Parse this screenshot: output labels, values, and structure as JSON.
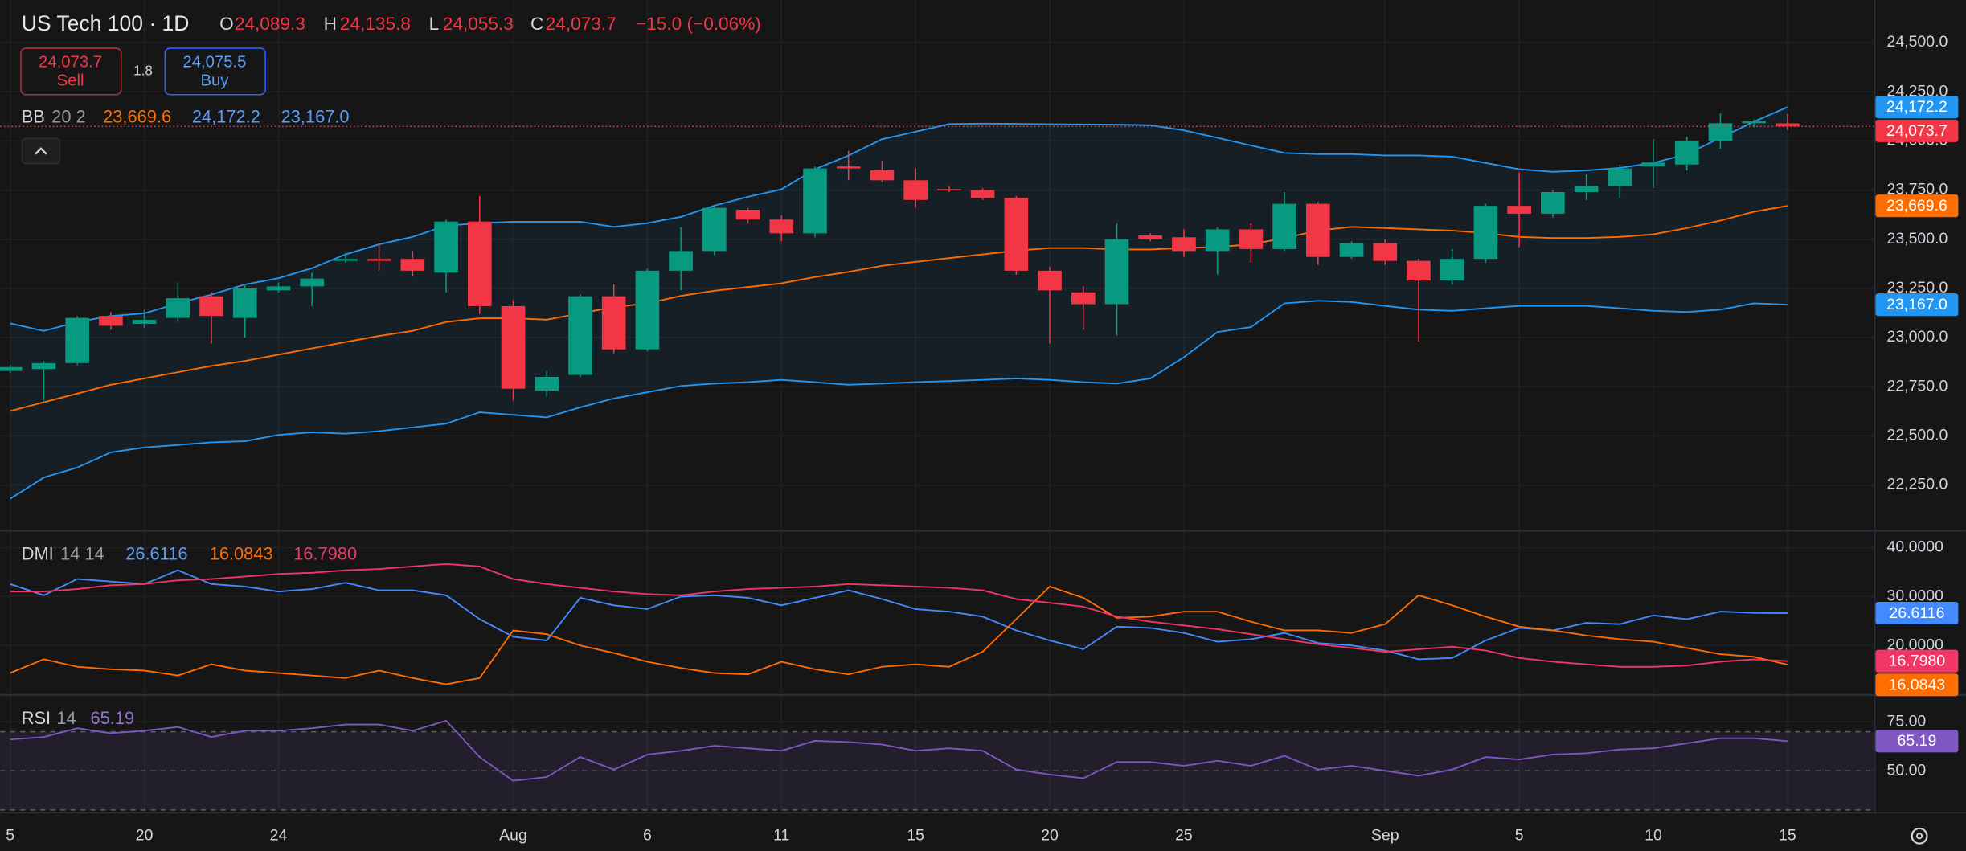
{
  "header": {
    "symbol": "US Tech 100 · 1D",
    "open_label": "O",
    "open": "24,089.3",
    "high_label": "H",
    "high": "24,135.8",
    "low_label": "L",
    "low": "24,055.3",
    "close_label": "C",
    "close": "24,073.7",
    "change": "−15.0 (−0.06%)"
  },
  "trade": {
    "sell_price": "24,073.7",
    "sell": "Sell",
    "spread": "1.8",
    "buy_price": "24,075.5",
    "buy": "Buy"
  },
  "chart_data": [
    {
      "type": "candlestick",
      "name": "BB",
      "params": "20 2",
      "categories": [
        "5",
        null,
        null,
        null,
        "20",
        null,
        null,
        null,
        "24",
        null,
        null,
        null,
        null,
        null,
        null,
        "Aug",
        null,
        null,
        null,
        "6",
        null,
        null,
        null,
        "11",
        null,
        null,
        null,
        "15",
        null,
        null,
        null,
        "20",
        null,
        null,
        null,
        "25",
        null,
        null,
        null,
        null,
        null,
        "Sep",
        null,
        null,
        null,
        "5",
        null,
        null,
        null,
        "10",
        null,
        null,
        null,
        "15"
      ],
      "open": [
        22830,
        22840,
        22870,
        23110,
        23070,
        23100,
        23210,
        23100,
        23240,
        23260,
        23390,
        23400,
        23400,
        23330,
        23590,
        23160,
        22730,
        22810,
        23210,
        22940,
        23340,
        23440,
        23650,
        23600,
        23530,
        23870,
        23850,
        23800,
        23755,
        23750,
        23710,
        23340,
        23230,
        23170,
        23520,
        23510,
        23440,
        23550,
        23450,
        23680,
        23410,
        23480,
        23390,
        23290,
        23400,
        23670,
        23630,
        23740,
        23770,
        23870,
        23880,
        24000,
        24090,
        24089.3
      ],
      "high": [
        22860,
        22880,
        23110,
        23130,
        23140,
        23280,
        23230,
        23270,
        23280,
        23330,
        23430,
        23480,
        23440,
        23600,
        23720,
        23190,
        22830,
        23220,
        23270,
        23350,
        23560,
        23670,
        23660,
        23620,
        23870,
        23950,
        23900,
        23860,
        23770,
        23760,
        23720,
        23360,
        23260,
        23580,
        23530,
        23550,
        23560,
        23580,
        23740,
        23690,
        23490,
        23500,
        23400,
        23450,
        23680,
        23840,
        23750,
        23830,
        23880,
        24010,
        24020,
        24140,
        24110,
        24135.8
      ],
      "low": [
        22820,
        22680,
        22860,
        23040,
        23050,
        23080,
        22970,
        23000,
        23230,
        23160,
        23380,
        23340,
        23310,
        23230,
        23120,
        22680,
        22700,
        22800,
        22920,
        22930,
        23240,
        23420,
        23580,
        23490,
        23510,
        23800,
        23790,
        23660,
        23740,
        23700,
        23320,
        22970,
        23040,
        23010,
        23490,
        23410,
        23320,
        23380,
        23440,
        23370,
        23400,
        23370,
        22980,
        23270,
        23380,
        23460,
        23610,
        23700,
        23710,
        23760,
        23850,
        23960,
        24070,
        24055.3
      ],
      "close": [
        22850,
        22870,
        23100,
        23060,
        23090,
        23200,
        23110,
        23250,
        23260,
        23300,
        23400,
        23390,
        23340,
        23590,
        23160,
        22740,
        22800,
        23210,
        22940,
        23340,
        23440,
        23660,
        23600,
        23530,
        23860,
        23860,
        23800,
        23700,
        23750,
        23710,
        23340,
        23240,
        23170,
        23500,
        23500,
        23440,
        23550,
        23450,
        23680,
        23410,
        23480,
        23390,
        23290,
        23400,
        23670,
        23630,
        23740,
        23770,
        23860,
        23890,
        24000,
        24090,
        24100,
        24073.7
      ],
      "up_color": "#089981",
      "down_color": "#f23645",
      "ylim": [
        22020.5,
        24716.7
      ],
      "yticks": [
        {
          "value": 24500,
          "label": "24,500.0"
        },
        {
          "value": 24250,
          "label": "24,250.0"
        },
        {
          "value": 24000,
          "label": "24,000.0"
        },
        {
          "value": 23750,
          "label": "23,750.0"
        },
        {
          "value": 23500,
          "label": "23,500.0"
        },
        {
          "value": 23250,
          "label": "23,250.0"
        },
        {
          "value": 23000,
          "label": "23,000.0"
        },
        {
          "value": 22750,
          "label": "22,750.0"
        },
        {
          "value": 22500,
          "label": "22,500.0"
        },
        {
          "value": 22250,
          "label": "22,250.0"
        }
      ],
      "grid": true,
      "band_fill": "rgba(33,150,243,0.07)",
      "series": [
        {
          "color": "#ff6d00",
          "last_label": "23,669.6",
          "values": [
            22626,
            22671,
            22715,
            22760,
            22792,
            22824,
            22856,
            22881,
            22913,
            22945,
            22977,
            23008,
            23034,
            23079,
            23098,
            23098,
            23091,
            23123,
            23155,
            23174,
            23212,
            23238,
            23257,
            23276,
            23308,
            23334,
            23365,
            23385,
            23404,
            23423,
            23442,
            23455,
            23455,
            23448,
            23448,
            23455,
            23461,
            23474,
            23506,
            23544,
            23563,
            23557,
            23550,
            23544,
            23531,
            23512,
            23506,
            23506,
            23512,
            23525,
            23557,
            23595,
            23640,
            23669.6
          ]
        },
        {
          "color": "#2196f3",
          "last_label": "24,172.2",
          "values": [
            23072,
            23034,
            23079,
            23110,
            23123,
            23174,
            23219,
            23270,
            23302,
            23353,
            23423,
            23474,
            23512,
            23569,
            23582,
            23589,
            23589,
            23589,
            23563,
            23582,
            23614,
            23671,
            23716,
            23754,
            23856,
            23926,
            24009,
            24047,
            24086,
            24088,
            24087,
            24085,
            24084,
            24083,
            24080,
            24054,
            24016,
            23977,
            23939,
            23933,
            23933,
            23926,
            23926,
            23920,
            23888,
            23856,
            23843,
            23850,
            23863,
            23888,
            23933,
            24016,
            24098,
            24172.2
          ]
        },
        {
          "color": "#2196f3",
          "last_label": "23,167.0",
          "values": [
            22180,
            22288,
            22339,
            22416,
            22441,
            22454,
            22467,
            22473,
            22505,
            22518,
            22511,
            22524,
            22543,
            22562,
            22620,
            22607,
            22594,
            22645,
            22690,
            22722,
            22754,
            22766,
            22773,
            22785,
            22773,
            22760,
            22766,
            22773,
            22779,
            22785,
            22792,
            22785,
            22773,
            22766,
            22792,
            22900,
            23028,
            23053,
            23174,
            23187,
            23181,
            23161,
            23142,
            23136,
            23149,
            23161,
            23161,
            23161,
            23149,
            23136,
            23130,
            23142,
            23174,
            23167.0
          ]
        }
      ]
    },
    {
      "type": "line",
      "name": "DMI",
      "params": "14 14",
      "ylim": [
        10.26,
        43.33
      ],
      "yticks": [
        {
          "value": 40,
          "label": "40.0000"
        },
        {
          "value": 30,
          "label": "30.0000"
        },
        {
          "value": 20,
          "label": "20.0000"
        }
      ],
      "grid": true,
      "series": [
        {
          "color": "#448aff",
          "values": [
            32.56,
            30.26,
            33.59,
            33.08,
            32.56,
            35.38,
            32.56,
            32.05,
            31.03,
            31.54,
            32.82,
            31.28,
            31.28,
            30.26,
            25.38,
            21.79,
            21.03,
            29.74,
            28.21,
            27.44,
            30.0,
            30.26,
            29.74,
            28.21,
            29.74,
            31.28,
            29.49,
            27.44,
            26.92,
            25.9,
            23.08,
            21.03,
            19.23,
            23.85,
            23.59,
            22.56,
            20.77,
            21.28,
            22.56,
            20.51,
            20.0,
            18.97,
            17.18,
            17.44,
            21.03,
            23.59,
            23.08,
            24.62,
            24.36,
            26.15,
            25.38,
            26.92,
            26.67,
            26.6116
          ]
        },
        {
          "color": "#ff6d00",
          "values": [
            14.36,
            17.18,
            15.64,
            15.13,
            14.87,
            13.85,
            16.15,
            14.87,
            14.36,
            13.85,
            13.33,
            14.87,
            13.33,
            12.05,
            13.33,
            23.08,
            22.31,
            20.0,
            18.46,
            16.67,
            15.38,
            14.36,
            14.1,
            16.67,
            15.13,
            14.1,
            15.64,
            16.15,
            15.64,
            18.72,
            25.38,
            32.05,
            29.74,
            25.64,
            25.9,
            26.92,
            26.92,
            24.87,
            23.08,
            23.08,
            22.56,
            24.36,
            30.26,
            28.21,
            25.9,
            23.85,
            23.08,
            22.05,
            21.28,
            20.77,
            19.49,
            18.21,
            17.69,
            16.0843
          ]
        },
        {
          "color": "#f23665",
          "last_label": "16.7980",
          "values": [
            31.03,
            31.03,
            31.54,
            32.31,
            32.56,
            33.33,
            33.59,
            34.1,
            34.62,
            34.87,
            35.38,
            35.64,
            36.15,
            36.67,
            36.15,
            33.59,
            32.56,
            31.79,
            31.03,
            30.51,
            30.26,
            31.03,
            31.54,
            31.79,
            32.05,
            32.56,
            32.31,
            32.05,
            31.79,
            31.28,
            29.49,
            28.72,
            27.95,
            25.9,
            24.87,
            24.1,
            23.33,
            22.31,
            21.28,
            20.26,
            19.49,
            18.72,
            19.23,
            19.74,
            18.97,
            17.44,
            16.67,
            16.15,
            15.64,
            15.64,
            15.9,
            16.67,
            17.18,
            16.798
          ]
        }
      ]
    },
    {
      "type": "line",
      "name": "RSI",
      "params": "14",
      "ylim": [
        29.5,
        88.5
      ],
      "yticks": [
        {
          "value": 75,
          "label": "75.00"
        },
        {
          "value": 50,
          "label": "50.00"
        }
      ],
      "grid": true,
      "levels": [
        70,
        50,
        30
      ],
      "band": [
        30,
        70
      ],
      "band_fill": "rgba(126,87,194,0.12)",
      "series": [
        {
          "color": "#7e57c2",
          "values": [
            66.03,
            67.31,
            71.79,
            69.23,
            70.51,
            72.44,
            67.31,
            70.51,
            70.51,
            71.79,
            73.72,
            73.72,
            70.51,
            75.64,
            57.05,
            44.87,
            46.8,
            57.05,
            50.64,
            58.33,
            60.26,
            62.82,
            61.54,
            60.26,
            65.38,
            64.74,
            63.46,
            60.26,
            61.54,
            60.26,
            50.64,
            48.08,
            46.15,
            54.49,
            54.49,
            52.56,
            55.13,
            52.56,
            57.69,
            50.64,
            52.56,
            50.0,
            47.44,
            50.64,
            57.05,
            55.77,
            58.33,
            58.97,
            60.9,
            61.54,
            64.1,
            66.67,
            66.67,
            65.19
          ]
        }
      ]
    }
  ]
}
